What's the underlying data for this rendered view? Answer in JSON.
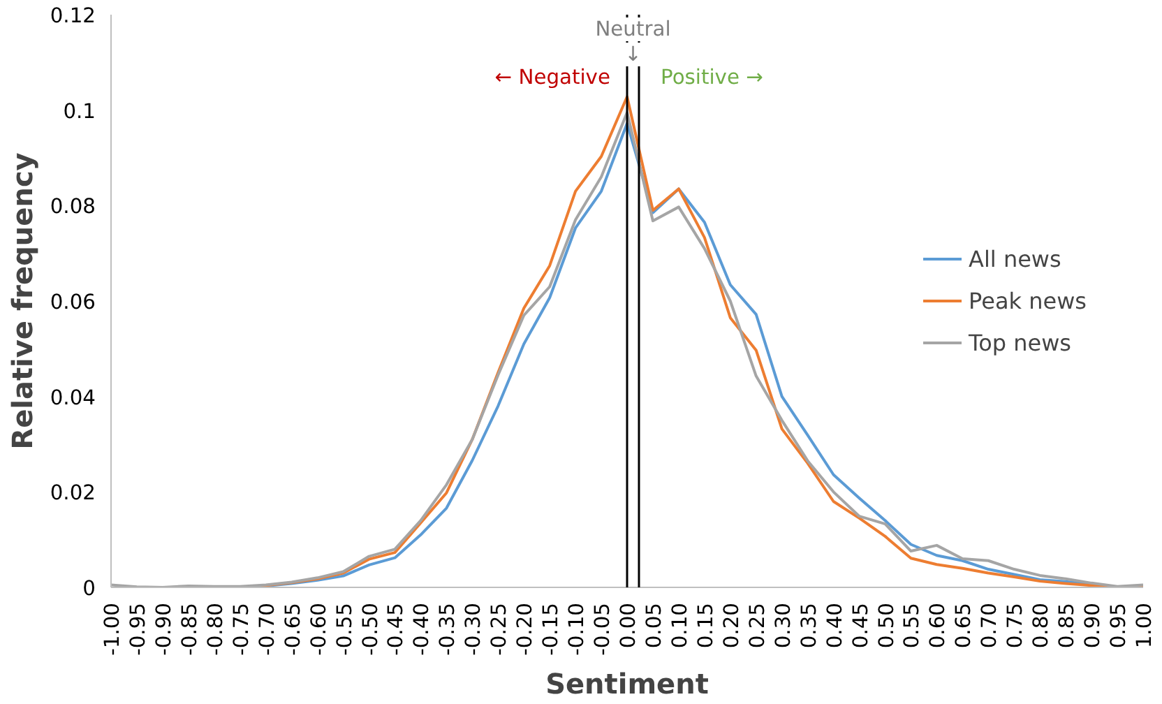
{
  "chart_data": {
    "type": "line",
    "xlabel": "Sentiment",
    "ylabel": "Relative frequency",
    "x": [
      -1.0,
      -0.95,
      -0.9,
      -0.85,
      -0.8,
      -0.75,
      -0.7,
      -0.65,
      -0.6,
      -0.55,
      -0.5,
      -0.45,
      -0.4,
      -0.35,
      -0.3,
      -0.25,
      -0.2,
      -0.15,
      -0.1,
      -0.05,
      0.0,
      0.05,
      0.1,
      0.15,
      0.2,
      0.25,
      0.3,
      0.35,
      0.4,
      0.45,
      0.5,
      0.55,
      0.6,
      0.65,
      0.7,
      0.75,
      0.8,
      0.85,
      0.9,
      0.95,
      1.0
    ],
    "series": [
      {
        "name": "All news",
        "color": "#5b9bd5",
        "values": [
          null,
          null,
          null,
          null,
          null,
          0.0,
          0.0003,
          0.0008,
          0.0015,
          0.0024,
          0.0047,
          0.0062,
          0.011,
          0.0166,
          0.0266,
          0.038,
          0.051,
          0.0607,
          0.0753,
          0.083,
          0.0972,
          0.0785,
          0.0835,
          0.0765,
          0.0634,
          0.0572,
          0.04,
          0.0319,
          0.0236,
          0.0187,
          0.014,
          0.009,
          0.0067,
          0.0056,
          0.0038,
          0.0027,
          0.0016,
          0.0012,
          0.0006,
          0.0,
          0.0003
        ]
      },
      {
        "name": "Peak news",
        "color": "#ed7d31",
        "values": [
          null,
          null,
          null,
          null,
          null,
          0.0,
          0.0004,
          0.001,
          0.0018,
          0.003,
          0.0059,
          0.0073,
          0.0135,
          0.0198,
          0.031,
          0.045,
          0.0585,
          0.0674,
          0.083,
          0.0903,
          0.1028,
          0.079,
          0.0835,
          0.0733,
          0.0565,
          0.0497,
          0.0332,
          0.026,
          0.018,
          0.0145,
          0.0107,
          0.0061,
          0.0048,
          0.004,
          0.003,
          0.0022,
          0.0013,
          0.0008,
          0.0004,
          0.0,
          0.0003
        ]
      },
      {
        "name": "Top news",
        "color": "#a5a5a5",
        "values": [
          0.0005,
          0.0001,
          0.0,
          0.0003,
          0.0002,
          0.0002,
          0.0005,
          0.0011,
          0.002,
          0.0033,
          0.0065,
          0.008,
          0.014,
          0.0215,
          0.031,
          0.0445,
          0.057,
          0.063,
          0.077,
          0.086,
          0.0995,
          0.0768,
          0.0797,
          0.071,
          0.06,
          0.0443,
          0.035,
          0.0265,
          0.02,
          0.0149,
          0.0133,
          0.0076,
          0.0088,
          0.006,
          0.0056,
          0.0038,
          0.0025,
          0.0018,
          0.0009,
          0.0002,
          0.0005
        ]
      }
    ],
    "xlim": [
      -1.0,
      1.0
    ],
    "xticks": [
      {
        "value": -1.0,
        "label": "-1.00"
      },
      {
        "value": -0.95,
        "label": "-0.95"
      },
      {
        "value": -0.9,
        "label": "-0.90"
      },
      {
        "value": -0.85,
        "label": "-0.85"
      },
      {
        "value": -0.8,
        "label": "-0.80"
      },
      {
        "value": -0.75,
        "label": "-0.75"
      },
      {
        "value": -0.7,
        "label": "-0.70"
      },
      {
        "value": -0.65,
        "label": "-0.65"
      },
      {
        "value": -0.6,
        "label": "-0.60"
      },
      {
        "value": -0.55,
        "label": "-0.55"
      },
      {
        "value": -0.5,
        "label": "-0.50"
      },
      {
        "value": -0.45,
        "label": "-0.45"
      },
      {
        "value": -0.4,
        "label": "-0.40"
      },
      {
        "value": -0.35,
        "label": "-0.35"
      },
      {
        "value": -0.3,
        "label": "-0.30"
      },
      {
        "value": -0.25,
        "label": "-0.25"
      },
      {
        "value": -0.2,
        "label": "-0.20"
      },
      {
        "value": -0.15,
        "label": "-0.15"
      },
      {
        "value": -0.1,
        "label": "-0.10"
      },
      {
        "value": -0.05,
        "label": "-0.05"
      },
      {
        "value": 0.0,
        "label": "0.00"
      },
      {
        "value": 0.05,
        "label": "0.05"
      },
      {
        "value": 0.1,
        "label": "0.10"
      },
      {
        "value": 0.15,
        "label": "0.15"
      },
      {
        "value": 0.2,
        "label": "0.20"
      },
      {
        "value": 0.25,
        "label": "0.25"
      },
      {
        "value": 0.3,
        "label": "0.30"
      },
      {
        "value": 0.35,
        "label": "0.35"
      },
      {
        "value": 0.4,
        "label": "0.40"
      },
      {
        "value": 0.45,
        "label": "0.45"
      },
      {
        "value": 0.5,
        "label": "0.50"
      },
      {
        "value": 0.55,
        "label": "0.55"
      },
      {
        "value": 0.6,
        "label": "0.60"
      },
      {
        "value": 0.65,
        "label": "0.65"
      },
      {
        "value": 0.7,
        "label": "0.70"
      },
      {
        "value": 0.75,
        "label": "0.75"
      },
      {
        "value": 0.8,
        "label": "0.80"
      },
      {
        "value": 0.85,
        "label": "0.85"
      },
      {
        "value": 0.9,
        "label": "0.90"
      },
      {
        "value": 0.95,
        "label": "0.95"
      },
      {
        "value": 1.0,
        "label": "1.00"
      }
    ],
    "ylim": [
      0,
      0.12
    ],
    "yticks": [
      0,
      0.02,
      0.04,
      0.06,
      0.08,
      0.1,
      0.12
    ],
    "ref_lines": [
      {
        "axis": "x",
        "value": 0.0,
        "color": "#000000"
      },
      {
        "axis": "x",
        "value": 0.023,
        "color": "#000000"
      }
    ],
    "annotations": [
      {
        "text": "Neutral",
        "x": 0.0115,
        "y": 0.12
      },
      "↓",
      "← Negative",
      "Positive →"
    ],
    "grid": false,
    "legend": "right",
    "line_style": "solid"
  }
}
